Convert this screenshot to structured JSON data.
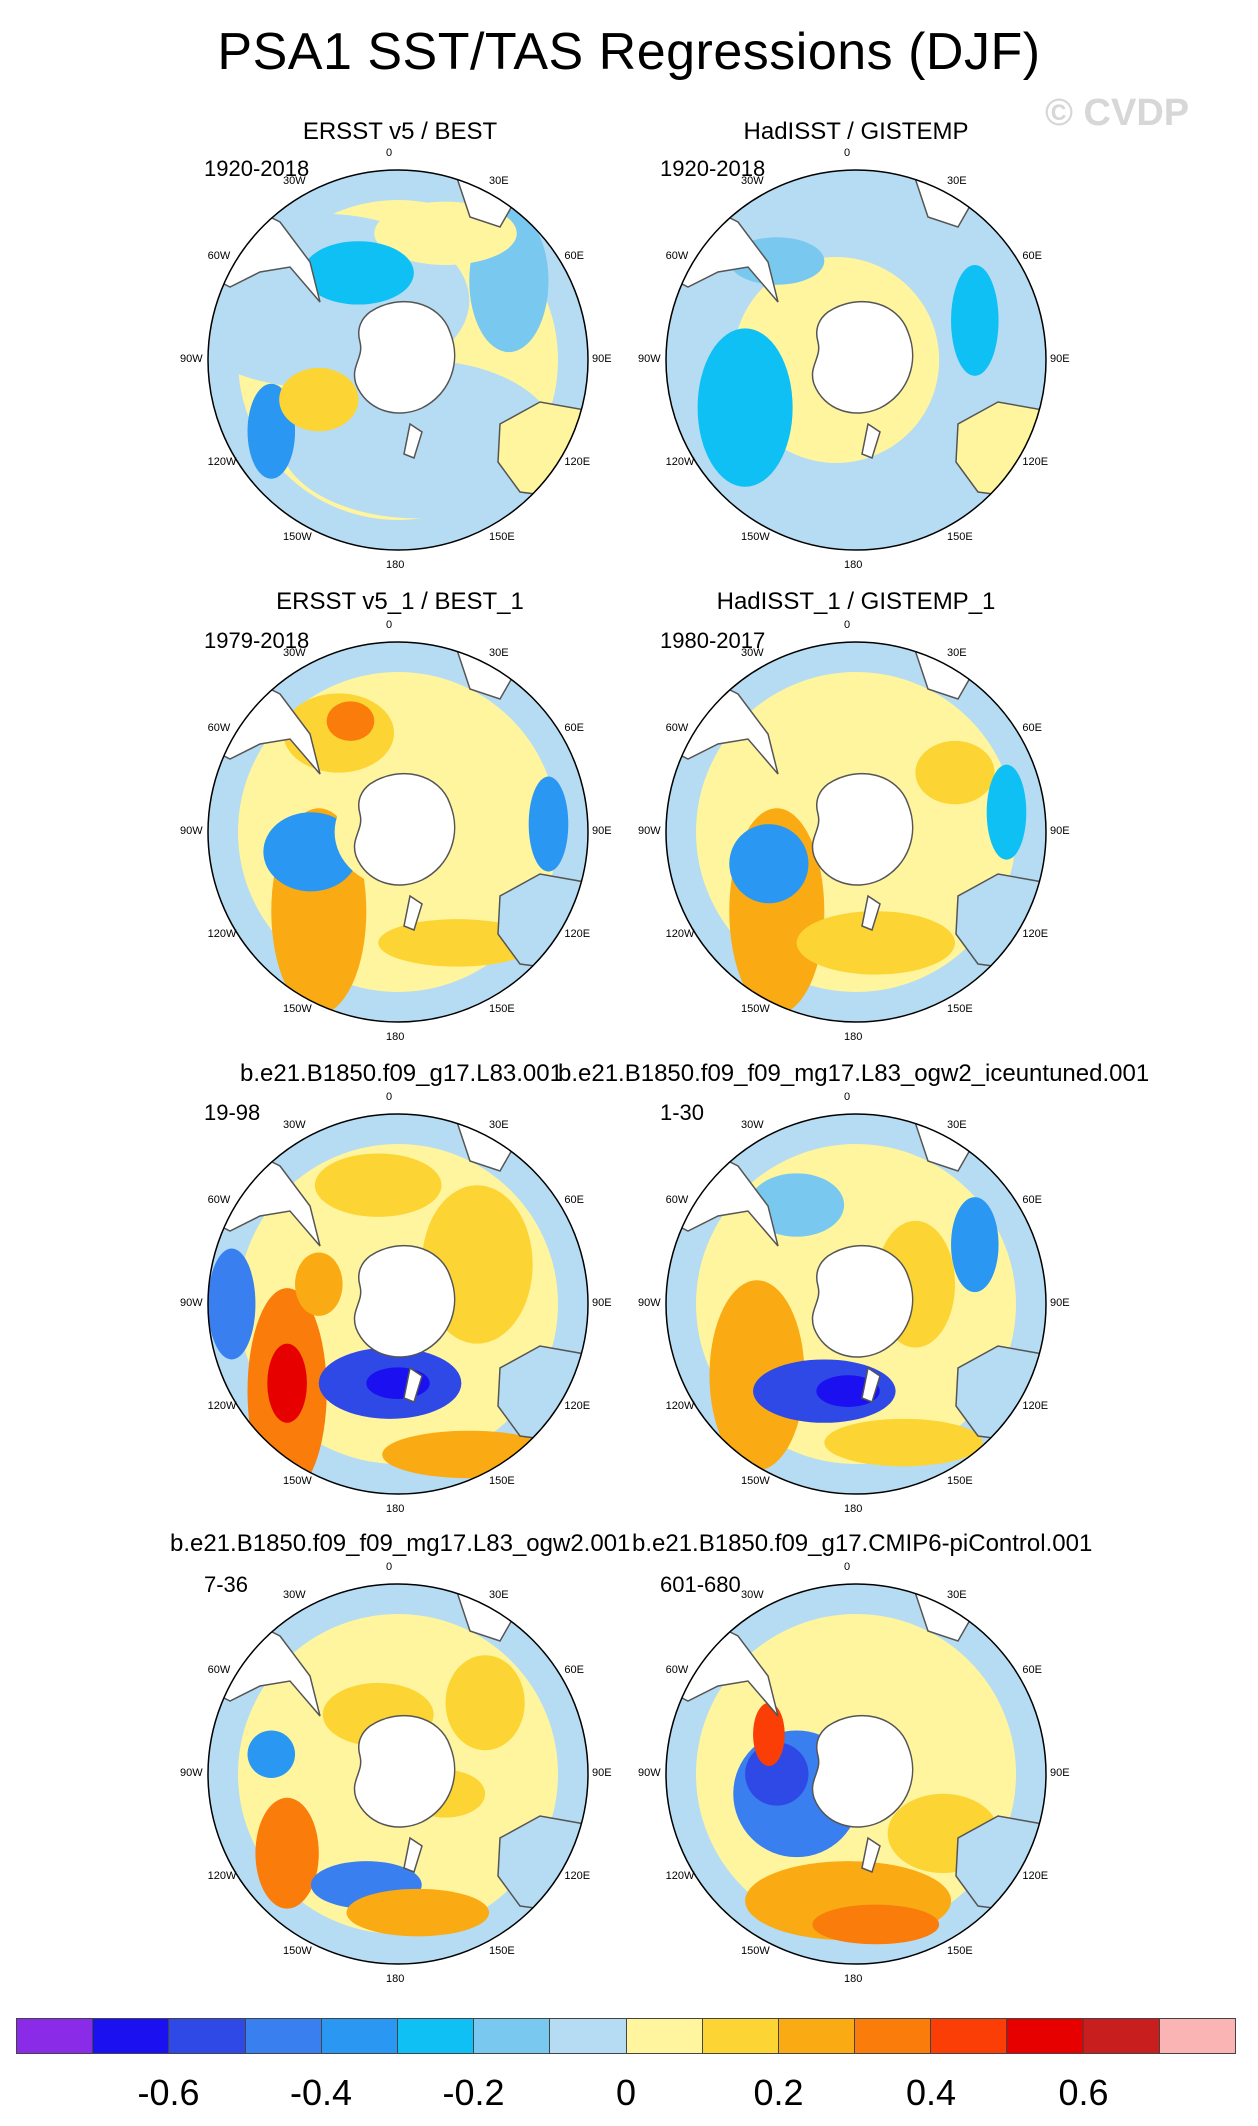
{
  "title": "PSA1 SST/TAS Regressions (DJF)",
  "copyright": "© CVDP",
  "colors": {
    "levels": [
      "#8a2be8",
      "#1a10f0",
      "#2f49e6",
      "#3a7ff0",
      "#2a97f2",
      "#0fc0f5",
      "#78c8f0",
      "#b5dcf2",
      "#fff59e",
      "#fcd434",
      "#faaa12",
      "#fa7c0a",
      "#fa3e05",
      "#e60000",
      "#c81e1e",
      "#fab4b4"
    ],
    "land_fill": "#ffffff",
    "coast": "#555555"
  },
  "lat_labels": [
    "0",
    "30E",
    "60E",
    "90E",
    "120E",
    "150E",
    "180",
    "150W",
    "120W",
    "90W",
    "60W",
    "30W"
  ],
  "panels": [
    {
      "title": "ERSST v5 / BEST",
      "period": "1920-2018"
    },
    {
      "title": "HadISST / GISTEMP",
      "period": "1920-2018"
    },
    {
      "title": "ERSST v5_1 / BEST_1",
      "period": "1979-2018"
    },
    {
      "title": "HadISST_1 / GISTEMP_1",
      "period": "1980-2017"
    },
    {
      "title": "b.e21.B1850.f09_g17.L83.001",
      "period": "19-98"
    },
    {
      "title": "b.e21.B1850.f09_f09_mg17.L83_ogw2_iceuntuned.001",
      "period": "1-30"
    },
    {
      "title": "b.e21.B1850.f09_f09_mg17.L83_ogw2.001",
      "period": "7-36"
    },
    {
      "title": "b.e21.B1850.f09_g17.CMIP6-piControl.001",
      "period": "601-680"
    }
  ],
  "colorbar": {
    "ticks": [
      "-0.6",
      "-0.4",
      "-0.2",
      "0",
      "0.2",
      "0.4",
      "0.6"
    ],
    "tick_values": [
      -0.6,
      -0.4,
      -0.2,
      0,
      0.2,
      0.4,
      0.6
    ],
    "min": -0.8,
    "max": 0.8
  }
}
